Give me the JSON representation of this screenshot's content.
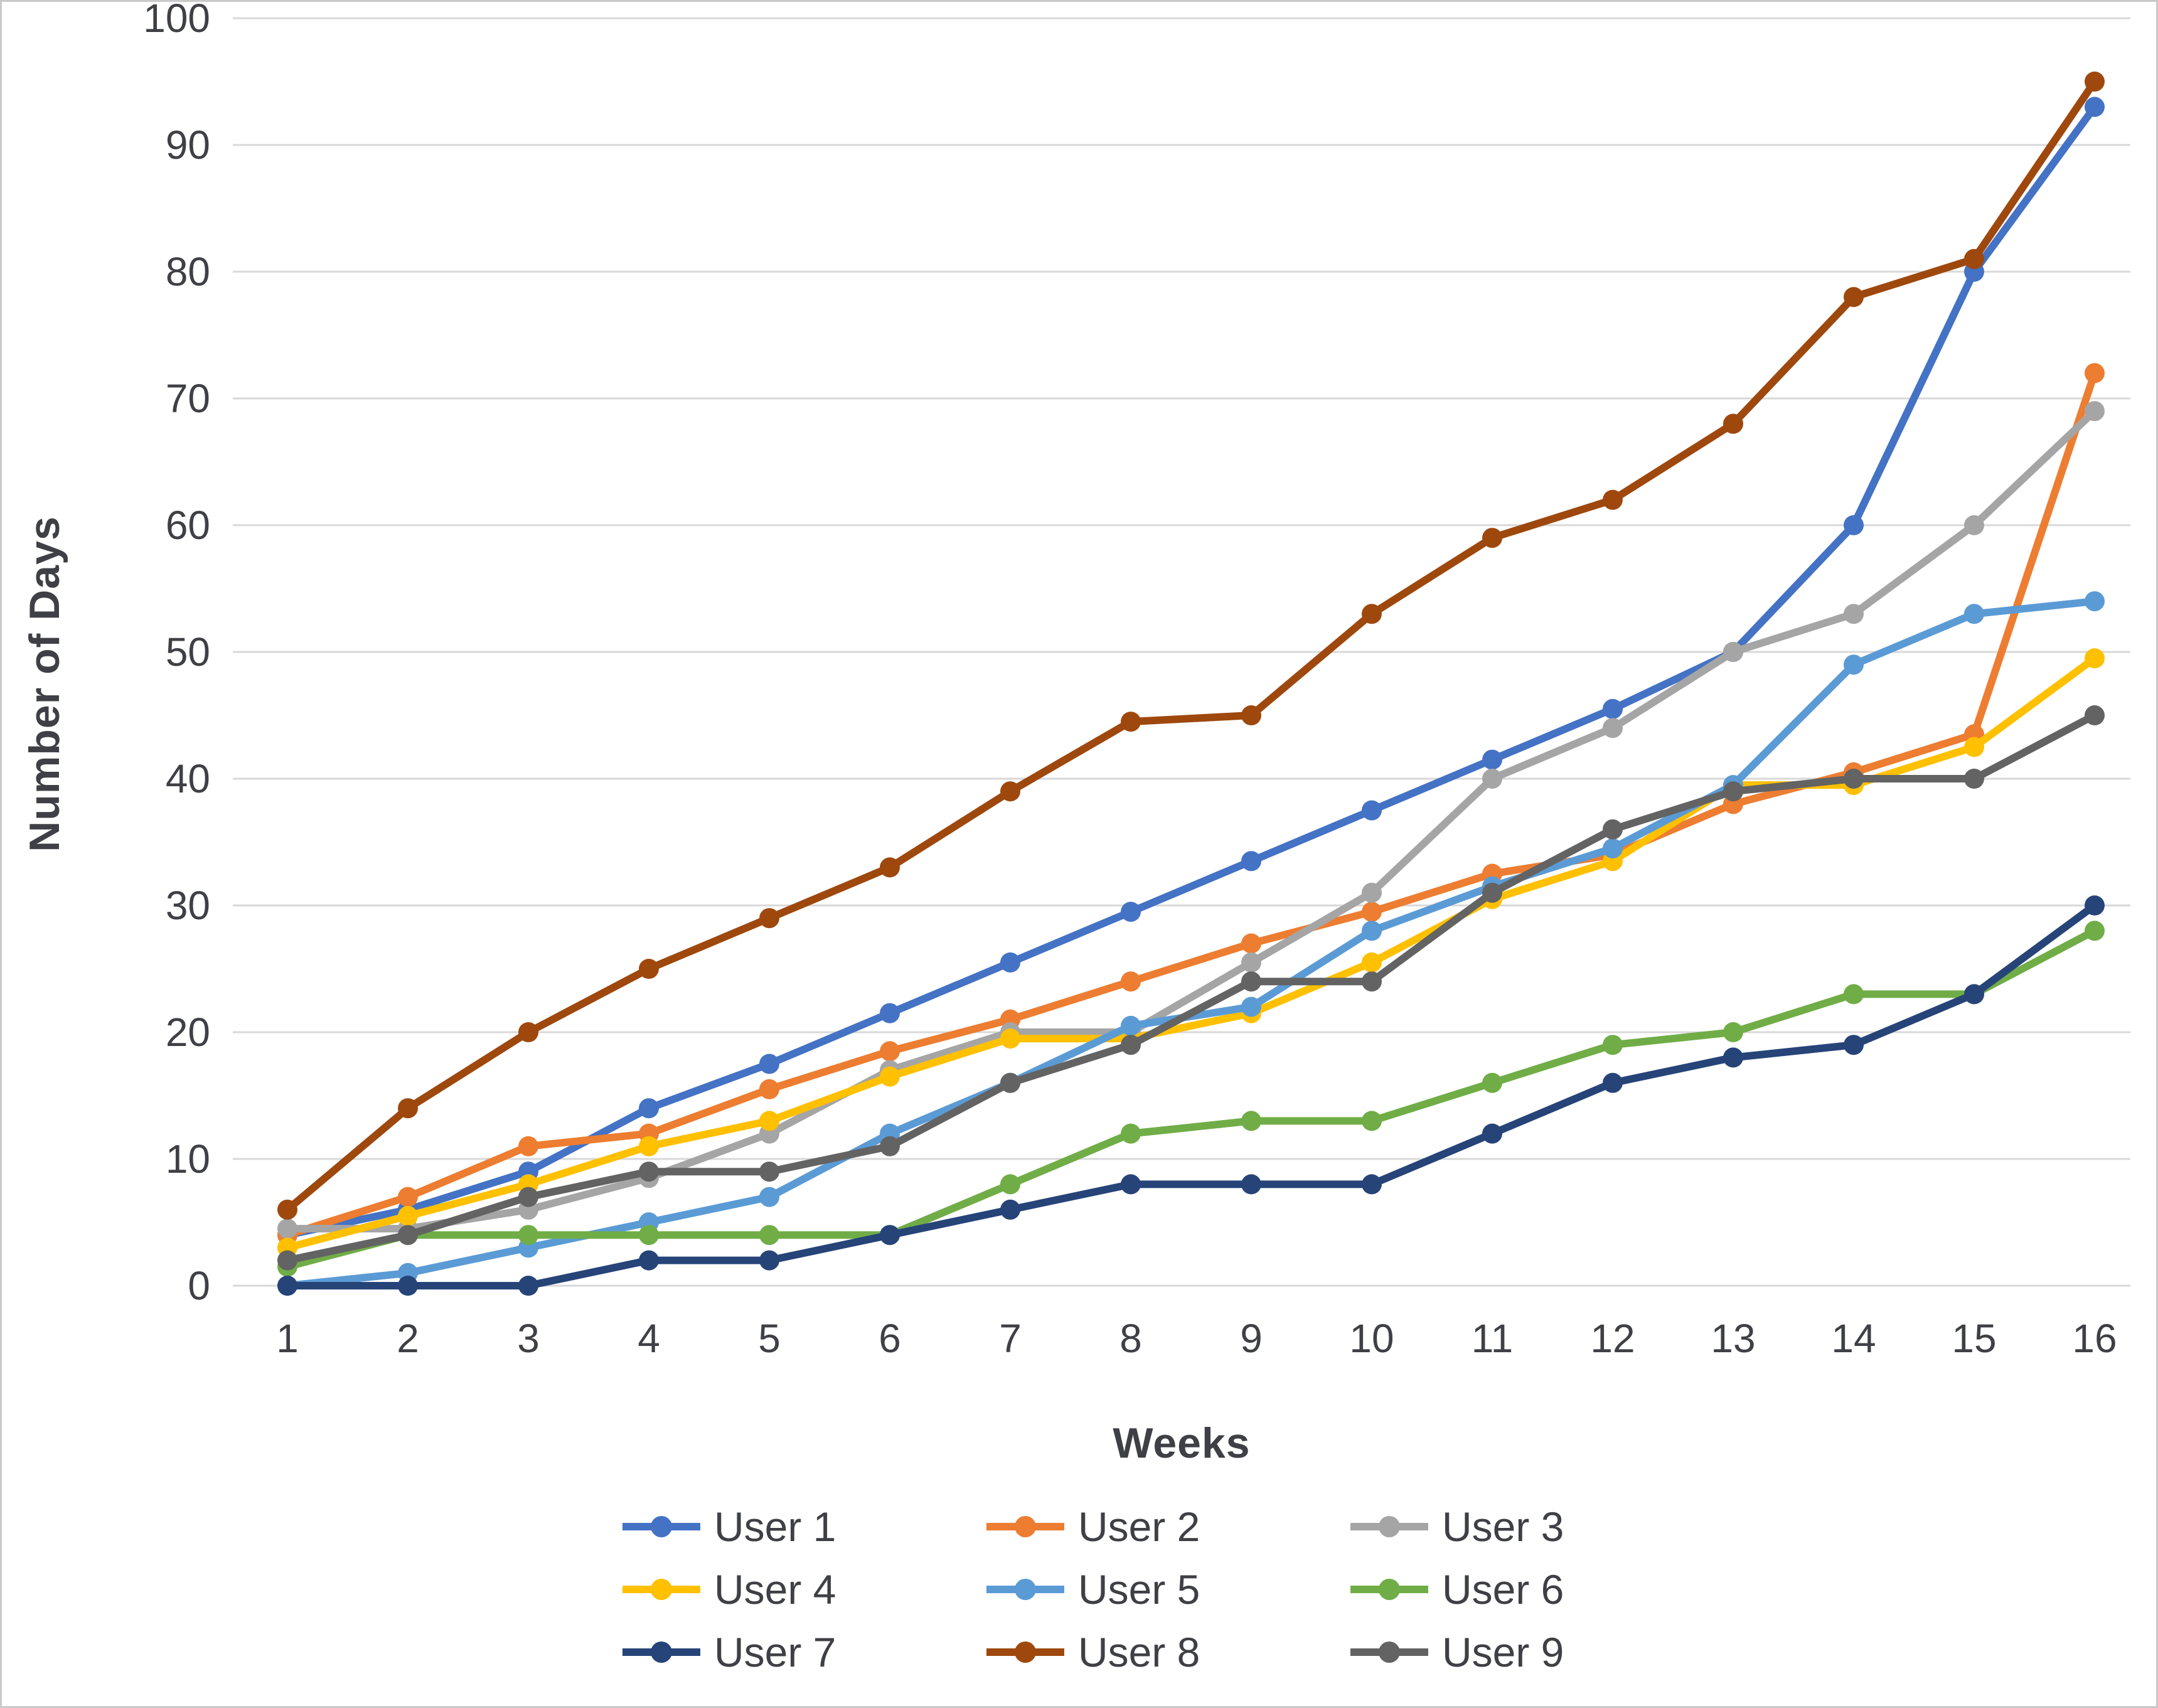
{
  "chart_data": {
    "type": "line",
    "title": "",
    "xlabel": "Weeks",
    "ylabel": "Number of Days",
    "categories": [
      1,
      2,
      3,
      4,
      5,
      6,
      7,
      8,
      9,
      10,
      11,
      12,
      13,
      14,
      15,
      16
    ],
    "ylim": [
      0,
      100
    ],
    "y_ticks": [
      0,
      10,
      20,
      30,
      40,
      50,
      60,
      70,
      80,
      90,
      100
    ],
    "grid": "horizontal",
    "gridline_color": "#d8d8d8",
    "legend_position": "bottom",
    "series": [
      {
        "name": "User 1",
        "color": "#4472C4",
        "values": [
          4,
          6,
          9,
          14,
          17.5,
          21.5,
          25.5,
          29.5,
          33.5,
          37.5,
          41.5,
          45.5,
          50,
          60,
          80,
          93
        ]
      },
      {
        "name": "User 2",
        "color": "#ED7D31",
        "values": [
          4,
          7,
          11,
          12,
          15.5,
          18.5,
          21,
          24,
          27,
          29.5,
          32.5,
          34,
          38,
          40.5,
          43.5,
          72
        ]
      },
      {
        "name": "User 3",
        "color": "#A5A5A5",
        "values": [
          4.5,
          4.5,
          6,
          8.5,
          12,
          17,
          20,
          20,
          25.5,
          31,
          40,
          44,
          50,
          53,
          60,
          69
        ]
      },
      {
        "name": "User 4",
        "color": "#FFC000",
        "values": [
          3,
          5.5,
          8,
          11,
          13,
          16.5,
          19.5,
          19.5,
          21.5,
          25.5,
          30.5,
          33.5,
          39.5,
          39.5,
          42.5,
          49.5
        ]
      },
      {
        "name": "User 5",
        "color": "#5B9BD5",
        "values": [
          0,
          1,
          3,
          5,
          7,
          12,
          16,
          20.5,
          22,
          28,
          31.5,
          34.5,
          39.5,
          49,
          53,
          54
        ]
      },
      {
        "name": "User 6",
        "color": "#70AD47",
        "values": [
          1.5,
          4,
          4,
          4,
          4,
          4,
          8,
          12,
          13,
          13,
          16,
          19,
          20,
          23,
          23,
          28
        ]
      },
      {
        "name": "User 7",
        "color": "#264478",
        "values": [
          0,
          0,
          0,
          2,
          2,
          4,
          6,
          8,
          8,
          8,
          12,
          16,
          18,
          19,
          23,
          30
        ]
      },
      {
        "name": "User 8",
        "color": "#9E480E",
        "values": [
          6,
          14,
          20,
          25,
          29,
          33,
          39,
          44.5,
          45,
          53,
          59,
          62,
          68,
          78,
          81,
          95
        ]
      },
      {
        "name": "User 9",
        "color": "#636363",
        "values": [
          2,
          4,
          7,
          9,
          9,
          11,
          16,
          19,
          24,
          24,
          31,
          36,
          39,
          40,
          40,
          45
        ]
      }
    ]
  }
}
